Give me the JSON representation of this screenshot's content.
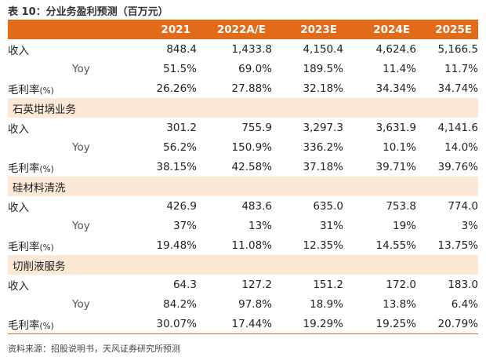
{
  "title": "表 10：分业务盈利预测（百万元）",
  "table": {
    "header": {
      "label": "",
      "years": [
        "2021",
        "2022A/E",
        "2023E",
        "2024E",
        "2025E"
      ]
    },
    "total": {
      "revenue": {
        "label": "收入",
        "values": [
          "848.4",
          "1,433.8",
          "4,150.4",
          "4,624.6",
          "5,166.5"
        ]
      },
      "yoy": {
        "label": "Yoy",
        "values": [
          "51.5%",
          "69.0%",
          "189.5%",
          "11.4%",
          "11.7%"
        ]
      },
      "margin": {
        "label": "毛利率",
        "unit": "(%)",
        "values": [
          "26.26%",
          "27.88%",
          "32.18%",
          "34.34%",
          "34.74%"
        ]
      }
    },
    "segments": [
      {
        "name": "石英坩埚业务",
        "revenue": {
          "label": "收入",
          "values": [
            "301.2",
            "755.9",
            "3,297.3",
            "3,631.9",
            "4,141.6"
          ]
        },
        "yoy": {
          "label": "Yoy",
          "values": [
            "56.2%",
            "150.9%",
            "336.2%",
            "10.1%",
            "14.0%"
          ]
        },
        "margin": {
          "label": "毛利率",
          "unit": "(%)",
          "values": [
            "38.15%",
            "42.58%",
            "37.18%",
            "39.71%",
            "39.76%"
          ]
        }
      },
      {
        "name": "硅材料清洗",
        "revenue": {
          "label": "收入",
          "values": [
            "426.9",
            "483.6",
            "635.0",
            "753.8",
            "774.0"
          ]
        },
        "yoy": {
          "label": "Yoy",
          "values": [
            "37%",
            "13%",
            "31%",
            "19%",
            "3%"
          ]
        },
        "margin": {
          "label": "毛利率",
          "unit": "(%)",
          "values": [
            "19.48%",
            "11.08%",
            "12.35%",
            "14.55%",
            "13.75%"
          ]
        }
      },
      {
        "name": "切削液服务",
        "revenue": {
          "label": "收入",
          "values": [
            "64.3",
            "127.2",
            "151.2",
            "172.0",
            "183.0"
          ]
        },
        "yoy": {
          "label": "Yoy",
          "values": [
            "84.2%",
            "97.8%",
            "18.9%",
            "13.8%",
            "6.4%"
          ]
        },
        "margin": {
          "label": "毛利率",
          "unit": "(%)",
          "values": [
            "30.07%",
            "17.44%",
            "19.29%",
            "19.25%",
            "20.79%"
          ]
        }
      }
    ]
  },
  "source": "资料来源：招股说明书，天风证券研究所预测",
  "colors": {
    "accent": "#e26b1a",
    "section_bg": "#fbe9d6"
  }
}
